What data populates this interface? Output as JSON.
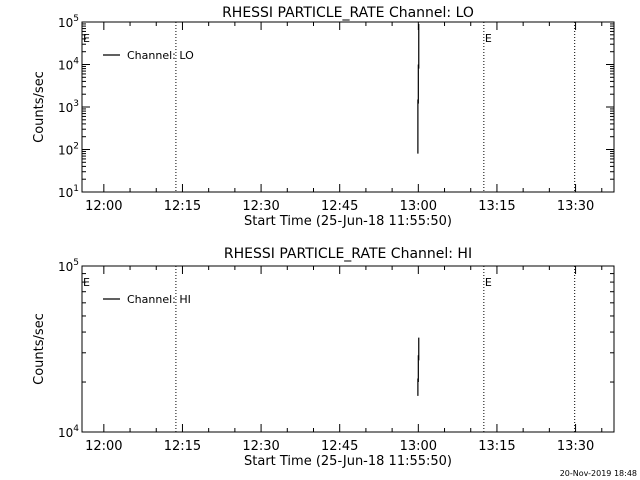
{
  "footer": {
    "timestamp": "20-Nov-2019 18:48"
  },
  "chart_data": [
    {
      "type": "line",
      "title": "RHESSI PARTICLE_RATE Channel: LO",
      "xlabel": "Start Time (25-Jun-18 11:55:50)",
      "ylabel": "Counts/sec",
      "yscale": "log",
      "xlim": [
        "11:55:50",
        "13:37:20"
      ],
      "ylim": [
        10,
        100000
      ],
      "x_ticks": [
        "12:00",
        "12:15",
        "12:30",
        "12:45",
        "13:00",
        "13:15",
        "13:30"
      ],
      "y_ticks": [
        {
          "value": 10,
          "base": "10",
          "exp": "1"
        },
        {
          "value": 100,
          "base": "10",
          "exp": "2"
        },
        {
          "value": 1000,
          "base": "10",
          "exp": "3"
        },
        {
          "value": 10000,
          "base": "10",
          "exp": "4"
        },
        {
          "value": 100000,
          "base": "10",
          "exp": "5"
        }
      ],
      "legend": {
        "position": "top-left",
        "entries": [
          "Channel: LO"
        ]
      },
      "vlines": [
        {
          "x": "12:13:45",
          "label": ""
        },
        {
          "x": "13:12:30",
          "label": "E"
        },
        {
          "x": "13:29:50",
          "label": ""
        }
      ],
      "corner_label": "E",
      "series": [
        {
          "name": "Channel: LO",
          "points": [
            {
              "x": "12:59:55",
              "y": 80
            },
            {
              "x": "12:59:55",
              "y": 1500
            },
            {
              "x": "13:00:00",
              "y": 1200
            },
            {
              "x": "13:00:00",
              "y": 10000
            },
            {
              "x": "13:00:05",
              "y": 8000
            },
            {
              "x": "13:00:05",
              "y": 90000
            }
          ]
        }
      ]
    },
    {
      "type": "line",
      "title": "RHESSI PARTICLE_RATE Channel: HI",
      "xlabel": "Start Time (25-Jun-18 11:55:50)",
      "ylabel": "Counts/sec",
      "yscale": "log",
      "xlim": [
        "11:55:50",
        "13:37:20"
      ],
      "ylim": [
        10000,
        100000
      ],
      "x_ticks": [
        "12:00",
        "12:15",
        "12:30",
        "12:45",
        "13:00",
        "13:15",
        "13:30"
      ],
      "y_ticks": [
        {
          "value": 10000,
          "base": "10",
          "exp": "4"
        },
        {
          "value": 100000,
          "base": "10",
          "exp": "5"
        }
      ],
      "legend": {
        "position": "top-left",
        "entries": [
          "Channel: HI"
        ]
      },
      "vlines": [
        {
          "x": "12:13:45",
          "label": ""
        },
        {
          "x": "13:12:30",
          "label": "E"
        },
        {
          "x": "13:29:50",
          "label": ""
        }
      ],
      "corner_label": "E",
      "series": [
        {
          "name": "Channel: HI",
          "points": [
            {
              "x": "12:59:55",
              "y": 16500
            },
            {
              "x": "12:59:55",
              "y": 21000
            },
            {
              "x": "13:00:00",
              "y": 20000
            },
            {
              "x": "13:00:00",
              "y": 29000
            },
            {
              "x": "13:00:05",
              "y": 27000
            },
            {
              "x": "13:00:05",
              "y": 37000
            }
          ]
        }
      ]
    }
  ]
}
